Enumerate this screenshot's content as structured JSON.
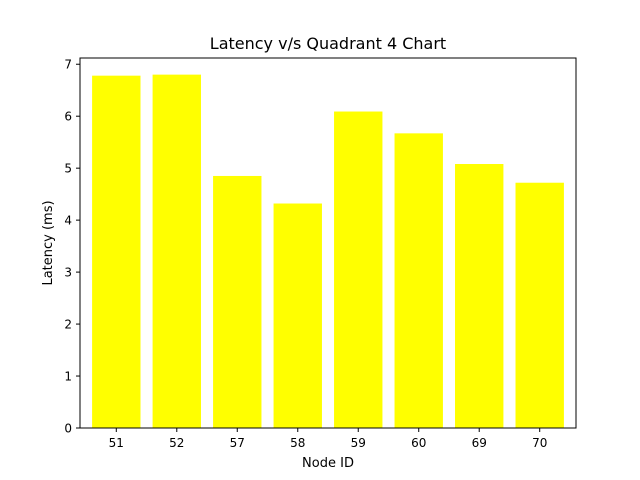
{
  "chart_data": {
    "type": "bar",
    "title": "Latency v/s Quadrant 4 Chart",
    "xlabel": "Node ID",
    "ylabel": "Latency (ms)",
    "categories": [
      "51",
      "52",
      "57",
      "58",
      "59",
      "60",
      "69",
      "70"
    ],
    "values": [
      6.78,
      6.8,
      4.85,
      4.32,
      6.09,
      5.67,
      5.08,
      4.72
    ],
    "ylim": [
      0,
      7.12
    ],
    "yticks": [
      "0",
      "1",
      "2",
      "3",
      "4",
      "5",
      "6",
      "7"
    ],
    "bar_color": "#ffff00",
    "grid": false,
    "legend": "none"
  }
}
